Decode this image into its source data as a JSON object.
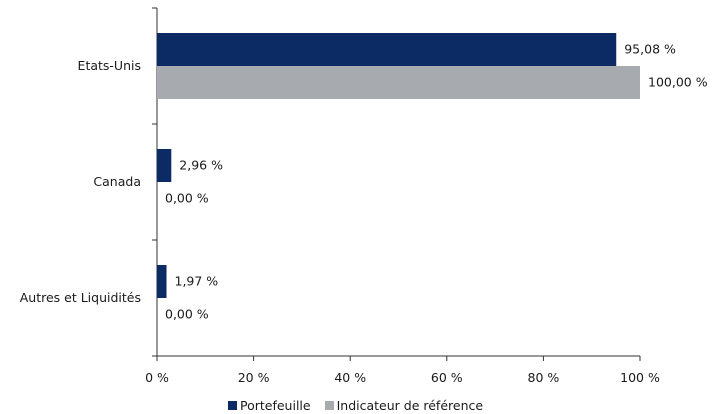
{
  "chart_data": {
    "type": "bar",
    "orientation": "horizontal",
    "categories": [
      "Etats-Unis",
      "Canada",
      "Autres et Liquidités"
    ],
    "series": [
      {
        "name": "Portefeuille",
        "values": [
          95.08,
          2.96,
          1.97
        ],
        "labels": [
          "95,08 %",
          "2,96 %",
          "1,97 %"
        ],
        "color": "#0c2b64"
      },
      {
        "name": "Indicateur de référence",
        "values": [
          100.0,
          0.0,
          0.0
        ],
        "labels": [
          "100,00 %",
          "0,00 %",
          "0,00 %"
        ],
        "color": "#a7abaf"
      }
    ],
    "xlim": [
      0,
      100
    ],
    "x_ticks": [
      0,
      20,
      40,
      60,
      80,
      100
    ],
    "x_tick_labels": [
      "0 %",
      "20 %",
      "40 %",
      "60 %",
      "80 %",
      "100 %"
    ],
    "grid": false,
    "legend_position": "bottom"
  }
}
